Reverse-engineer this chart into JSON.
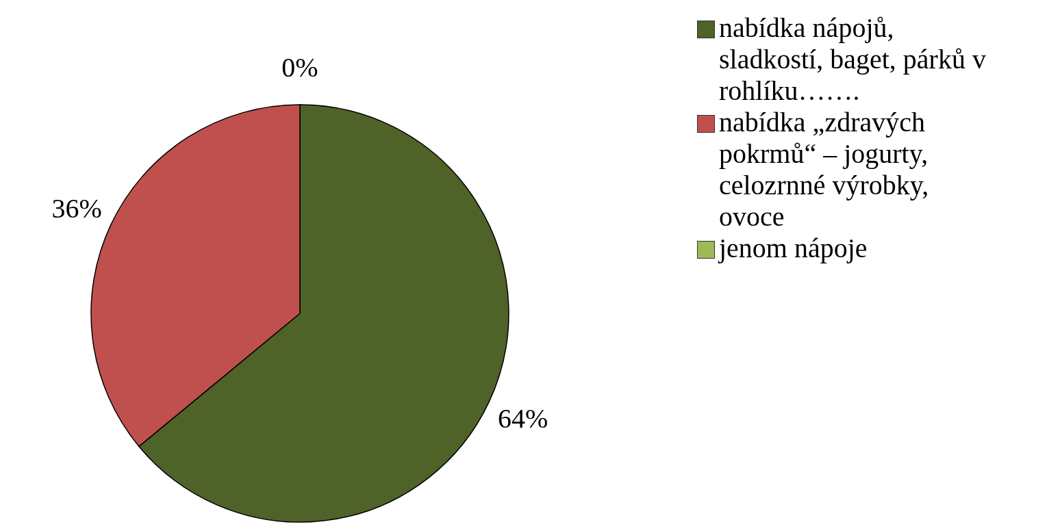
{
  "chart_data": {
    "type": "pie",
    "categories": [
      "nabídka nápojů, sladkostí, baget, párků v rohlíku…….",
      "nabídka „zdravých pokrmů“ – jogurty, celozrnné výrobky, ovoce",
      "jenom nápoje"
    ],
    "values": [
      64,
      36,
      0
    ],
    "value_labels": [
      "64%",
      "36%",
      "0%"
    ],
    "colors": [
      "#4f6228",
      "#c0504d",
      "#9bbb59"
    ],
    "legend": "right"
  }
}
